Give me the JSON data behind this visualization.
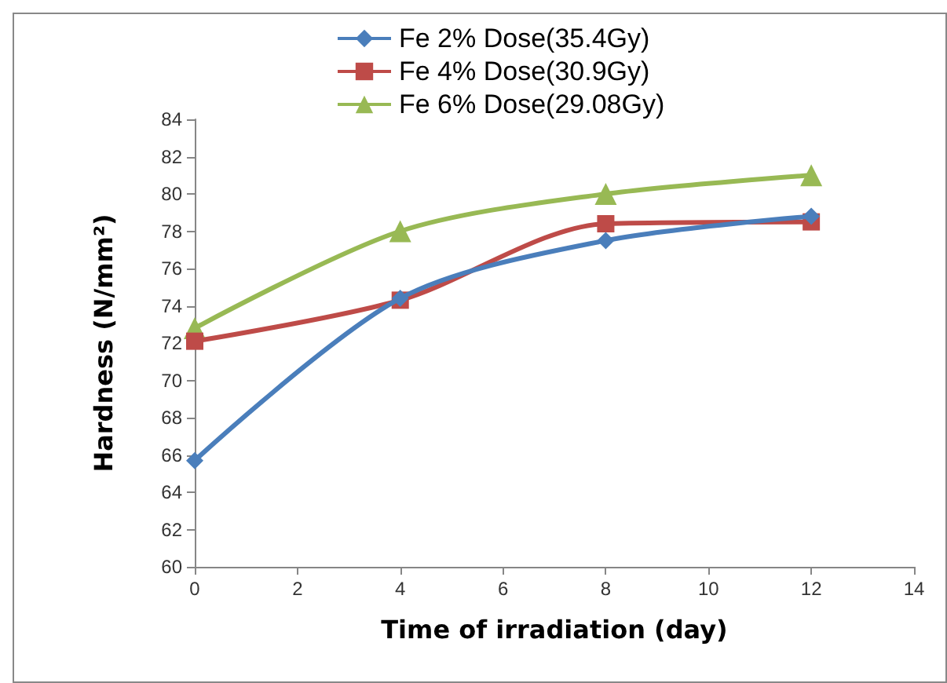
{
  "chart_data": {
    "type": "line",
    "xlabel": "Time of irradiation (day)",
    "ylabel": "Hardness (N/mm²)",
    "x": [
      0,
      4,
      8,
      12
    ],
    "series": [
      {
        "name": "Fe 2% Dose(35.4Gy)",
        "color": "#4a7ebb",
        "marker": "diamond",
        "values": [
          65.7,
          74.4,
          77.5,
          78.8
        ]
      },
      {
        "name": "Fe 4% Dose(30.9Gy)",
        "color": "#be4b48",
        "marker": "square",
        "values": [
          72.1,
          74.3,
          78.4,
          78.5
        ]
      },
      {
        "name": "Fe 6% Dose(29.08Gy)",
        "color": "#98b954",
        "marker": "triangle",
        "values": [
          72.8,
          78,
          80,
          81
        ]
      }
    ],
    "xlim": [
      0,
      14
    ],
    "xticks": [
      0,
      2,
      4,
      6,
      8,
      10,
      12,
      14
    ],
    "ylim": [
      60,
      84
    ],
    "yticks": [
      60,
      62,
      64,
      66,
      68,
      70,
      72,
      74,
      76,
      78,
      80,
      82,
      84
    ],
    "grid": false,
    "legend": "top",
    "line_style": "solid"
  }
}
